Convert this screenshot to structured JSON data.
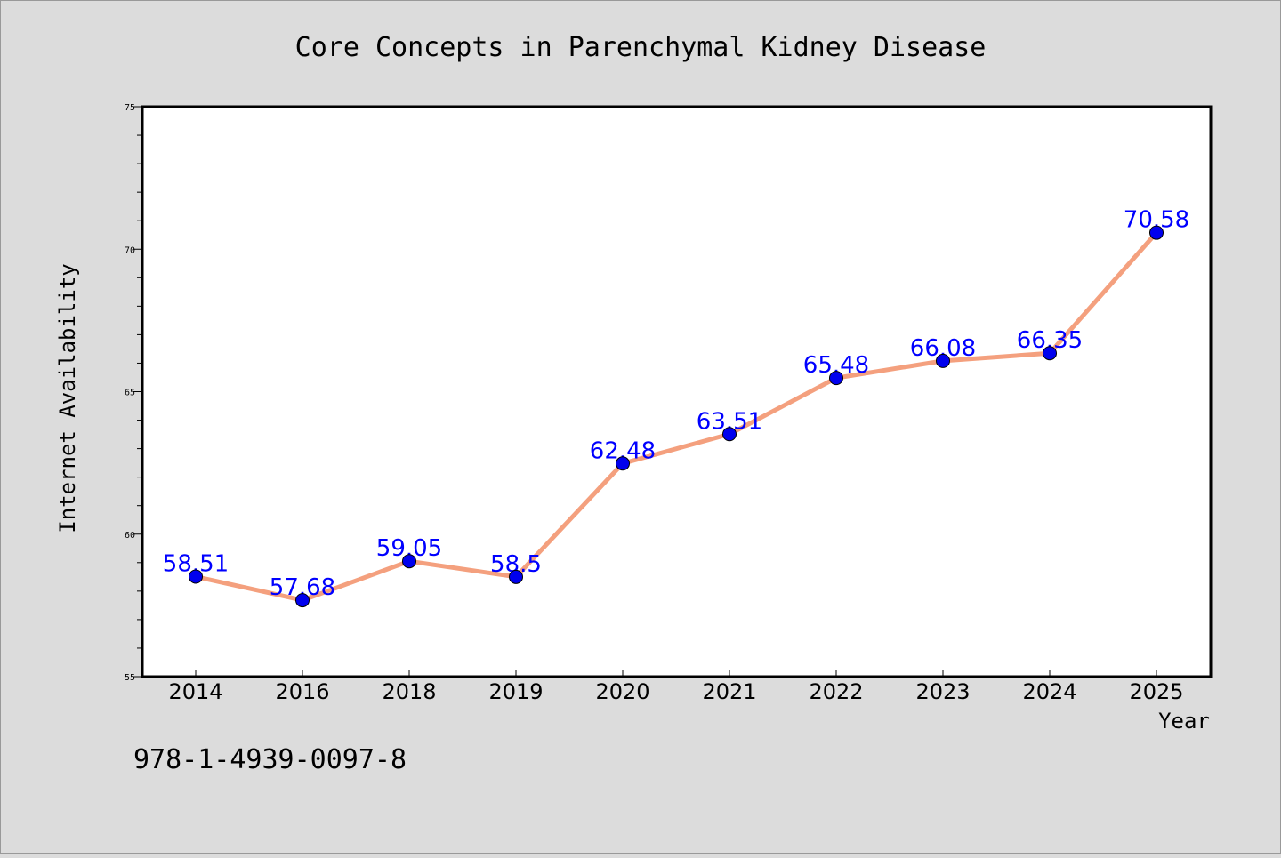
{
  "chart_data": {
    "type": "line",
    "title": "Core Concepts in Parenchymal Kidney Disease",
    "xlabel": "Year",
    "ylabel": "Internet Availability",
    "categories": [
      "2014",
      "2016",
      "2018",
      "2019",
      "2020",
      "2021",
      "2022",
      "2023",
      "2024",
      "2025"
    ],
    "series": [
      {
        "values": [
          58.51,
          57.68,
          59.05,
          58.5,
          62.48,
          63.51,
          65.48,
          66.08,
          66.35,
          70.58
        ],
        "labels": [
          "58.51",
          "57.68",
          "59.05",
          "58.5",
          "62.48",
          "63.51",
          "65.48",
          "66.08",
          "66.35",
          "70.58"
        ],
        "line_color": "#f4a07e",
        "marker_color": "#0000ee"
      }
    ],
    "ylim": [
      55,
      75
    ],
    "yticks": [
      "55",
      "60",
      "65",
      "70",
      "75"
    ],
    "grid": false,
    "legend": "none"
  },
  "footer": {
    "isbn": "978-1-4939-0097-8"
  },
  "colors": {
    "background": "#dcdcdc",
    "plot_background": "#ffffff",
    "label_color": "#0000ff"
  }
}
